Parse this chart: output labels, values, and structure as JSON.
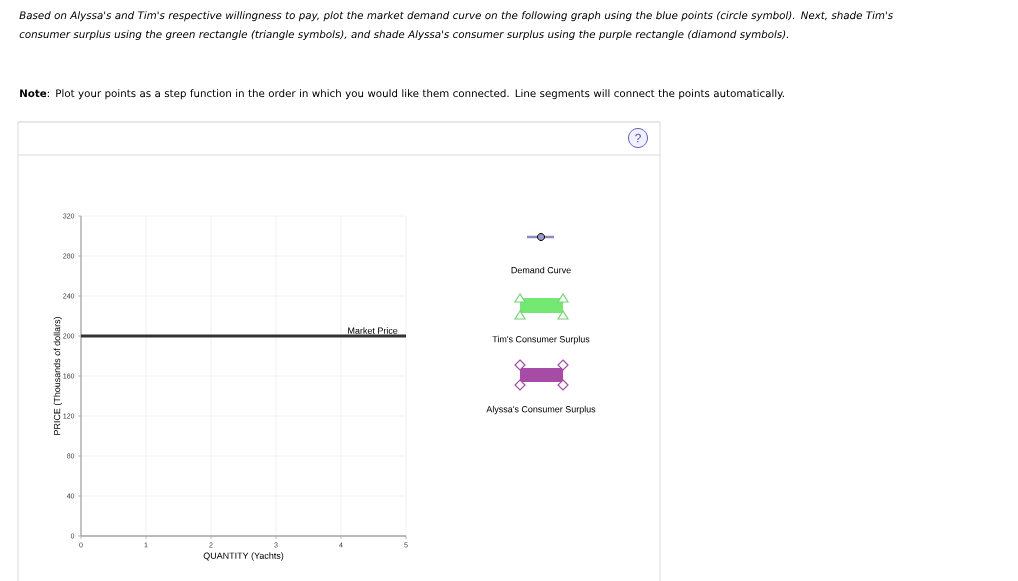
{
  "chart_data": {
    "type": "line",
    "xlabel": "QUANTITY (Yachts)",
    "ylabel": "PRICE (Thousands of dollars)",
    "xlim": [
      0,
      5
    ],
    "xticks": [
      0,
      1,
      2,
      3,
      4,
      5
    ],
    "ylim": [
      0,
      320
    ],
    "yticks": [
      0,
      40,
      80,
      120,
      160,
      200,
      240,
      280,
      320
    ],
    "grid": true,
    "ref_lines": [
      {
        "axis": "y",
        "value": 200,
        "label": "Market Price",
        "color": "#333333"
      }
    ],
    "annotations": [
      "Based on Alyssa's and Tim's respective willingness to pay, plot the market demand curve on the following graph using the blue points (circle symbol). Next, shade Tim's consumer surplus using the green rectangle (triangle symbols), and shade Alyssa's consumer surplus using the purple rectangle (diamond symbols).",
      "**Note**: Plot your points as a step function in the order in which you would like them connected. Line segments will connect the points automatically.",
      "Demand Curve",
      "Tim's Consumer Surplus",
      "Alyssa's Consumer Surplus",
      "?"
    ]
  }
}
